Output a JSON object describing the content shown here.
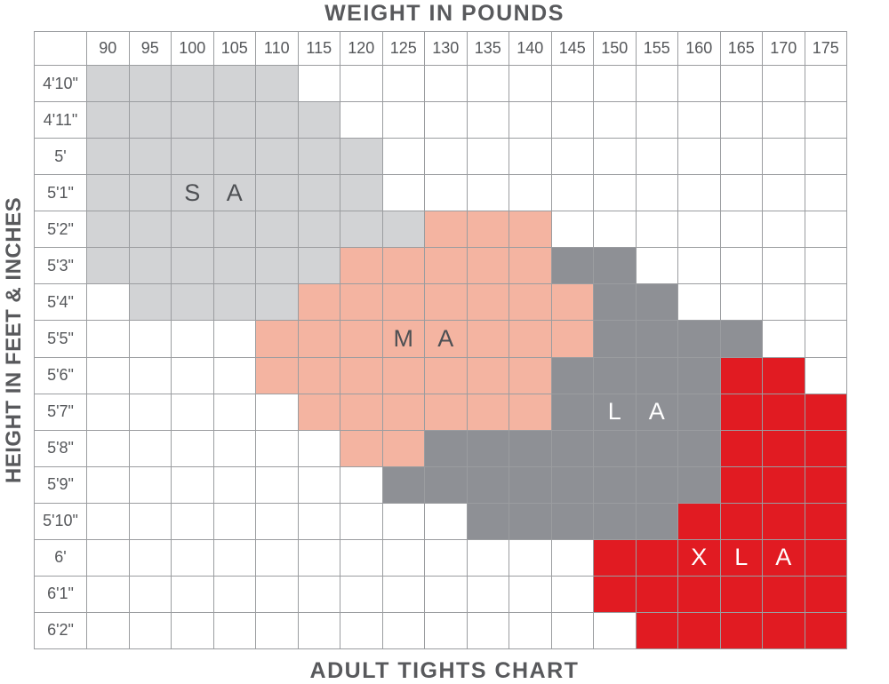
{
  "titles": {
    "top": "WEIGHT IN POUNDS",
    "bottom": "ADULT TIGHTS CHART",
    "left": "HEIGHT IN FEET & INCHES"
  },
  "colors": {
    "grid_line": "#9b9da0",
    "title_text": "#58595c",
    "header_text": "#55575a",
    "letter_dark": "#4e5054",
    "letter_light": "#ffffff",
    "background": "#ffffff"
  },
  "chart_data": {
    "type": "heatmap",
    "title": "ADULT TIGHTS CHART",
    "xlabel": "WEIGHT IN POUNDS",
    "ylabel": "HEIGHT IN FEET & INCHES",
    "x_categories": [
      "90",
      "95",
      "100",
      "105",
      "110",
      "115",
      "120",
      "125",
      "130",
      "135",
      "140",
      "145",
      "150",
      "155",
      "160",
      "165",
      "170",
      "175"
    ],
    "y_categories": [
      "4'10\"",
      "4'11\"",
      "5'",
      "5'1\"",
      "5'2\"",
      "5'3\"",
      "5'4\"",
      "5'5\"",
      "5'6\"",
      "5'7\"",
      "5'8\"",
      "5'9\"",
      "5'10\"",
      "6'",
      "6'1\"",
      "6'2\""
    ],
    "size_colors": {
      "S": "#d2d3d5",
      "M": "#f4b4a1",
      "L": "#8e9095",
      "X": "#e11b22"
    },
    "sizes": [
      {
        "code": "S",
        "label": "S A",
        "color": "#d2d3d5"
      },
      {
        "code": "M",
        "label": "M A",
        "color": "#f4b4a1"
      },
      {
        "code": "L",
        "label": "L A",
        "color": "#8e9095"
      },
      {
        "code": "X",
        "label": "X L A",
        "color": "#e11b22"
      }
    ],
    "rows": [
      "SSSSS.............",
      "SSSSSS............",
      "SSSSSSS...........",
      "SSSSSSS...........",
      "SSSSSSSSMMM.......",
      "SSSSSSMMMMMLL.....",
      ".SSSSMMMMMMMLL....",
      "....MMMMMMMMLLLL..",
      "....MMMMMMMLLLLXX.",
      ".....MMMMMMLLLLXXX",
      "......MMLLLLLLLXXX",
      ".......LLLLLLLLXXX",
      ".........LLLLLXXXX",
      "............XXXXXX",
      "............XXXXXX",
      ".............XXXXX"
    ],
    "region_labels": [
      {
        "text": "S",
        "row": 3,
        "col": 2,
        "tone": "dark"
      },
      {
        "text": "A",
        "row": 3,
        "col": 3,
        "tone": "dark"
      },
      {
        "text": "M",
        "row": 7,
        "col": 7,
        "tone": "dark"
      },
      {
        "text": "A",
        "row": 7,
        "col": 8,
        "tone": "dark"
      },
      {
        "text": "L",
        "row": 9,
        "col": 12,
        "tone": "light"
      },
      {
        "text": "A",
        "row": 9,
        "col": 13,
        "tone": "light"
      },
      {
        "text": "X",
        "row": 13,
        "col": 14,
        "tone": "light"
      },
      {
        "text": "L",
        "row": 13,
        "col": 15,
        "tone": "light"
      },
      {
        "text": "A",
        "row": 13,
        "col": 16,
        "tone": "light"
      }
    ]
  }
}
